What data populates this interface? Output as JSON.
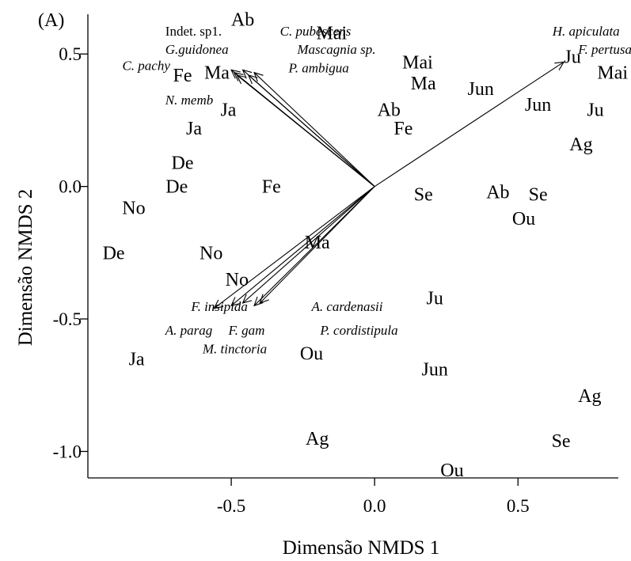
{
  "chart_data": {
    "type": "scatter",
    "panel_label": "(A)",
    "xlabel": "Dimensão NMDS 1",
    "ylabel": "Dimensão NMDS 2",
    "xlim": [
      -1.0,
      0.85
    ],
    "ylim": [
      -1.1,
      0.65
    ],
    "x_ticks": [
      "-0.5",
      "0.0",
      "0.5"
    ],
    "x_tick_values": [
      -0.5,
      0.0,
      0.5
    ],
    "y_ticks": [
      "0.5",
      "0.0",
      "-0.5",
      "-1.0"
    ],
    "y_tick_values": [
      0.5,
      0.0,
      -0.5,
      -1.0
    ],
    "grid": false,
    "legend": "none",
    "sample_points": [
      {
        "label": "Ab",
        "x": -0.46,
        "y": 0.63
      },
      {
        "label": "Mai",
        "x": -0.15,
        "y": 0.58
      },
      {
        "label": "Fe",
        "x": -0.67,
        "y": 0.42
      },
      {
        "label": "Ma",
        "x": -0.55,
        "y": 0.43
      },
      {
        "label": "Ja",
        "x": -0.51,
        "y": 0.29
      },
      {
        "label": "Ja",
        "x": -0.63,
        "y": 0.22
      },
      {
        "label": "De",
        "x": -0.67,
        "y": 0.09
      },
      {
        "label": "De",
        "x": -0.69,
        "y": 0.0
      },
      {
        "label": "Fe",
        "x": -0.36,
        "y": 0.0
      },
      {
        "label": "No",
        "x": -0.84,
        "y": -0.08
      },
      {
        "label": "De",
        "x": -0.91,
        "y": -0.25
      },
      {
        "label": "No",
        "x": -0.57,
        "y": -0.25
      },
      {
        "label": "Ma",
        "x": -0.2,
        "y": -0.21
      },
      {
        "label": "No",
        "x": -0.48,
        "y": -0.35
      },
      {
        "label": "Ja",
        "x": -0.83,
        "y": -0.65
      },
      {
        "label": "Ou",
        "x": -0.22,
        "y": -0.63
      },
      {
        "label": "Ag",
        "x": -0.2,
        "y": -0.95
      },
      {
        "label": "Mai",
        "x": 0.15,
        "y": 0.47
      },
      {
        "label": "Ma",
        "x": 0.17,
        "y": 0.39
      },
      {
        "label": "Ab",
        "x": 0.05,
        "y": 0.29
      },
      {
        "label": "Fe",
        "x": 0.1,
        "y": 0.22
      },
      {
        "label": "Jun",
        "x": 0.37,
        "y": 0.37
      },
      {
        "label": "Jun",
        "x": 0.57,
        "y": 0.31
      },
      {
        "label": "Ju",
        "x": 0.69,
        "y": 0.49
      },
      {
        "label": "Mai",
        "x": 0.83,
        "y": 0.43
      },
      {
        "label": "Ju",
        "x": 0.77,
        "y": 0.29
      },
      {
        "label": "Ag",
        "x": 0.72,
        "y": 0.16
      },
      {
        "label": "Se",
        "x": 0.17,
        "y": -0.03
      },
      {
        "label": "Ab",
        "x": 0.43,
        "y": -0.02
      },
      {
        "label": "Se",
        "x": 0.57,
        "y": -0.03
      },
      {
        "label": "Ou",
        "x": 0.52,
        "y": -0.12
      },
      {
        "label": "Ju",
        "x": 0.21,
        "y": -0.42
      },
      {
        "label": "Jun",
        "x": 0.21,
        "y": -0.69
      },
      {
        "label": "Ag",
        "x": 0.75,
        "y": -0.79
      },
      {
        "label": "Se",
        "x": 0.65,
        "y": -0.96
      },
      {
        "label": "Ou",
        "x": 0.27,
        "y": -1.07
      }
    ],
    "vectors": [
      {
        "x": -0.5,
        "y": 0.44
      },
      {
        "x": -0.49,
        "y": 0.43
      },
      {
        "x": -0.48,
        "y": 0.42
      },
      {
        "x": -0.46,
        "y": 0.44
      },
      {
        "x": -0.44,
        "y": 0.42
      },
      {
        "x": -0.42,
        "y": 0.43
      },
      {
        "x": 0.66,
        "y": 0.47
      },
      {
        "x": -0.56,
        "y": -0.46
      },
      {
        "x": -0.5,
        "y": -0.45
      },
      {
        "x": -0.46,
        "y": -0.44
      },
      {
        "x": -0.42,
        "y": -0.45
      },
      {
        "x": -0.4,
        "y": -0.44
      }
    ],
    "species_labels": [
      {
        "label": "Indet. sp1.",
        "x": -0.73,
        "y": 0.57,
        "style": "normal"
      },
      {
        "label": "C. pubescens",
        "x": -0.33,
        "y": 0.57,
        "style": "italic"
      },
      {
        "label": "G.guidonea",
        "x": -0.73,
        "y": 0.5,
        "style": "italic"
      },
      {
        "label": "Mascagnia sp.",
        "x": -0.27,
        "y": 0.5,
        "style": "italic"
      },
      {
        "label": "C. pachy",
        "x": -0.88,
        "y": 0.44,
        "style": "italic"
      },
      {
        "label": "P. ambigua",
        "x": -0.3,
        "y": 0.43,
        "style": "italic"
      },
      {
        "label": "N. memb",
        "x": -0.73,
        "y": 0.31,
        "style": "italic"
      },
      {
        "label": "H. apiculata",
        "x": 0.62,
        "y": 0.57,
        "style": "italic"
      },
      {
        "label": "F. pertusa",
        "x": 0.71,
        "y": 0.5,
        "style": "italic"
      },
      {
        "label": "F. insipida",
        "x": -0.64,
        "y": -0.47,
        "style": "italic"
      },
      {
        "label": "A. cardenasii",
        "x": -0.22,
        "y": -0.47,
        "style": "italic"
      },
      {
        "label": "A. parag",
        "x": -0.73,
        "y": -0.56,
        "style": "italic"
      },
      {
        "label": "F. gam",
        "x": -0.51,
        "y": -0.56,
        "style": "italic"
      },
      {
        "label": "P. cordistipula",
        "x": -0.19,
        "y": -0.56,
        "style": "italic"
      },
      {
        "label": "M. tinctoria",
        "x": -0.6,
        "y": -0.63,
        "style": "italic"
      }
    ]
  }
}
